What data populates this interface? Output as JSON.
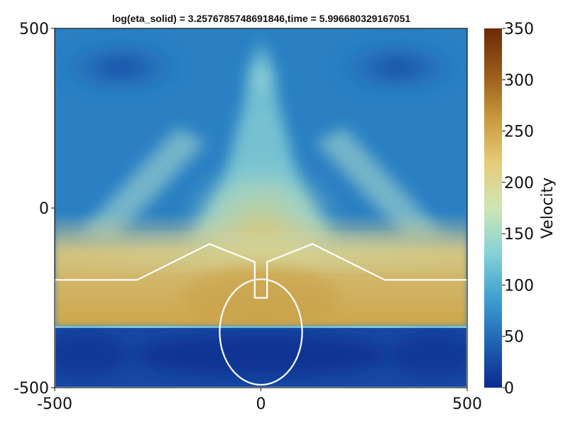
{
  "chart_data": {
    "type": "heatmap",
    "title": "log(eta_solid) = 3.2576785748691846,time = 5.996680329167051",
    "xlim": [
      -500,
      500
    ],
    "ylim": [
      -500,
      500
    ],
    "xticks": [
      {
        "value": -500,
        "label": "-500"
      },
      {
        "value": 0,
        "label": "0"
      },
      {
        "value": 500,
        "label": "500"
      }
    ],
    "yticks": [
      {
        "value": 500,
        "label": "500"
      },
      {
        "value": 0,
        "label": "0"
      },
      {
        "value": -500,
        "label": "-500"
      }
    ],
    "colorbar": {
      "label": "Velocity",
      "range": [
        0,
        350
      ],
      "ticks": [
        {
          "value": 350,
          "label": "350"
        },
        {
          "value": 300,
          "label": "300"
        },
        {
          "value": 250,
          "label": "250"
        },
        {
          "value": 200,
          "label": "200"
        },
        {
          "value": 150,
          "label": "150"
        },
        {
          "value": 100,
          "label": "100"
        },
        {
          "value": 50,
          "label": "50"
        },
        {
          "value": 0,
          "label": "0"
        }
      ],
      "colors": [
        "#0b2a8f",
        "#1f63b5",
        "#3fa0cf",
        "#86d2d6",
        "#cfe6b4",
        "#e6cc7a",
        "#c79a3c",
        "#9a5a18",
        "#6b2a04"
      ]
    },
    "grid": false,
    "boundary_outline": {
      "color": "#ffffff",
      "polyline": [
        [
          -500,
          -200
        ],
        [
          -300,
          -200
        ],
        [
          -125,
          -100
        ],
        [
          -15,
          -150
        ],
        [
          -15,
          -250
        ],
        [
          15,
          -250
        ],
        [
          15,
          -150
        ],
        [
          125,
          -100
        ],
        [
          300,
          -200
        ],
        [
          500,
          -200
        ],
        [
          500,
          -500
        ],
        [
          -500,
          -500
        ]
      ],
      "circle": {
        "cx": 0,
        "cy": -345,
        "r": 100
      }
    }
  }
}
